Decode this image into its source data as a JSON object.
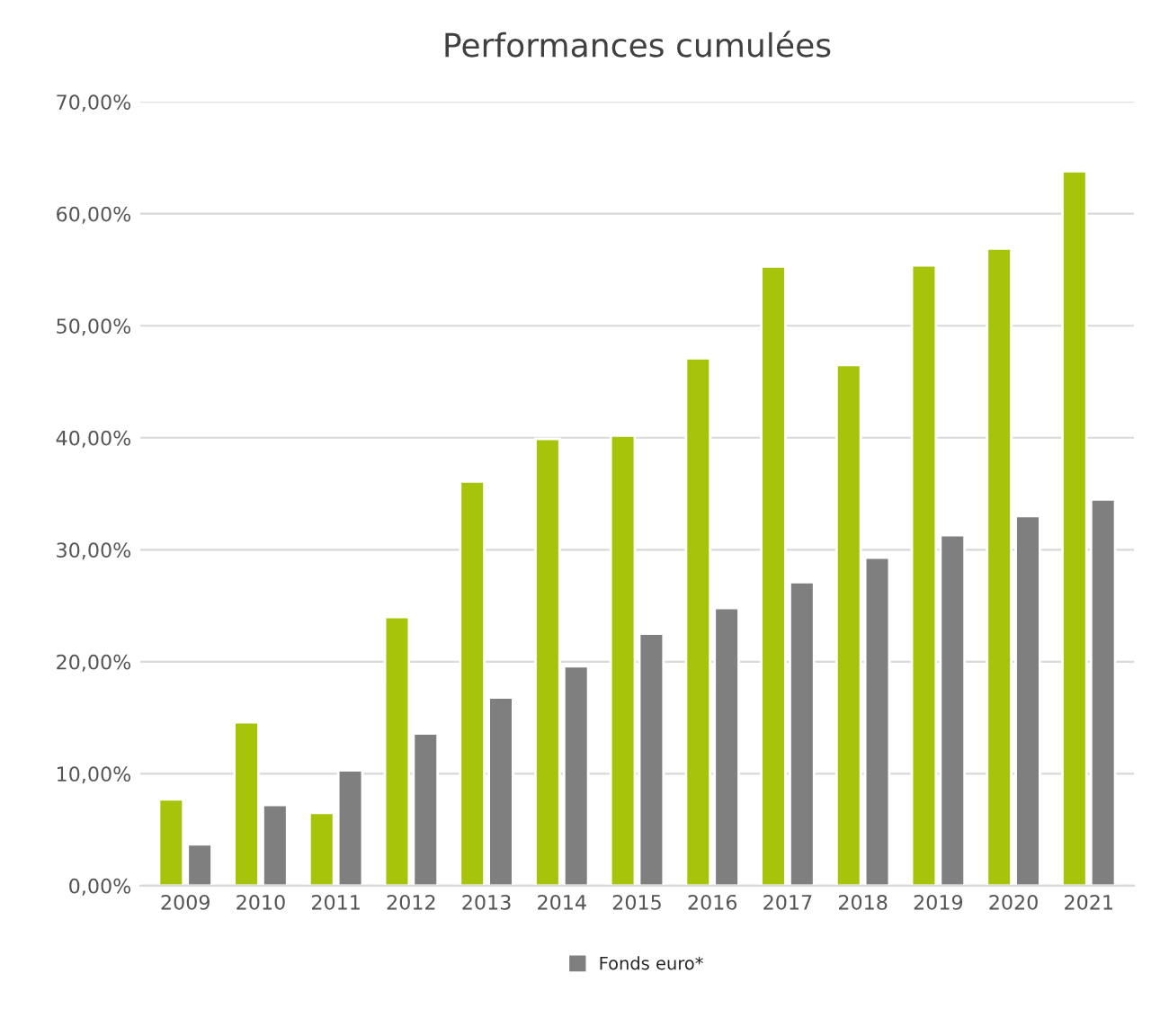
{
  "chart_data": {
    "type": "bar",
    "title": "Performances cumulées",
    "categories": [
      "2009",
      "2010",
      "2011",
      "2012",
      "2013",
      "2014",
      "2015",
      "2016",
      "2017",
      "2018",
      "2019",
      "2020",
      "2021"
    ],
    "series": [
      {
        "color": "#a8c40a",
        "values": [
          7.7,
          14.6,
          6.5,
          24.0,
          36.1,
          39.9,
          40.2,
          47.1,
          55.3,
          46.5,
          55.4,
          56.9,
          63.8
        ]
      },
      {
        "name": "Fonds euro*",
        "color": "#7f7f7f",
        "values": [
          3.7,
          7.2,
          10.3,
          13.6,
          16.8,
          19.6,
          22.5,
          24.8,
          27.1,
          29.3,
          31.3,
          33.0,
          34.5
        ]
      }
    ],
    "ylim": [
      0,
      70
    ],
    "yticks": [
      {
        "value": 0,
        "label": "0,00%"
      },
      {
        "value": 10,
        "label": "10,00%"
      },
      {
        "value": 20,
        "label": "20,00%"
      },
      {
        "value": 30,
        "label": "30,00%"
      },
      {
        "value": 40,
        "label": "40,00%"
      },
      {
        "value": 50,
        "label": "50,00%"
      },
      {
        "value": 60,
        "label": "60,00%"
      },
      {
        "value": 70,
        "label": "70,00%"
      }
    ],
    "grid": "y",
    "legend": "bottom"
  }
}
